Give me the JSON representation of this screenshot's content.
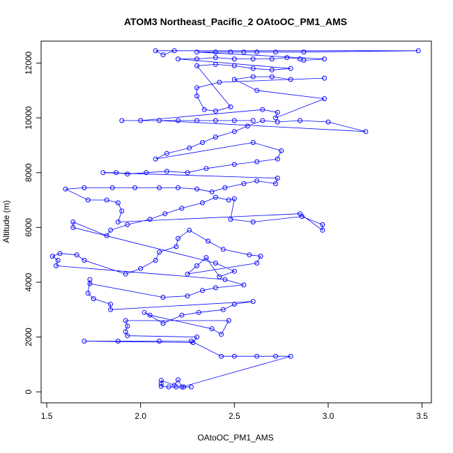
{
  "chart_data": {
    "type": "scatter",
    "title": "ATOM3 Northeast_Pacific_2 OAtoOC_PM1_AMS",
    "xlabel": "OAtoOC_PM1_AMS",
    "ylabel": "Altitude (m)",
    "xlim": [
      1.47,
      3.55
    ],
    "ylim": [
      -400,
      12800
    ],
    "x_ticks": [
      1.5,
      2.0,
      2.5,
      3.0,
      3.5
    ],
    "x_tick_labels": [
      "1.5",
      "2.0",
      "2.5",
      "3.0",
      "3.5"
    ],
    "y_ticks": [
      0,
      2000,
      4000,
      6000,
      8000,
      10000,
      12000
    ],
    "y_tick_labels": [
      "0",
      "2000",
      "4000",
      "6000",
      "8000",
      "10000",
      "12000"
    ],
    "marker": "open-circle",
    "connected_by_line": true,
    "grid": false,
    "series": [
      {
        "color": "#0000ff",
        "points": [
          [
            2.27,
            180
          ],
          [
            2.23,
            180
          ],
          [
            2.19,
            180
          ],
          [
            2.15,
            180
          ],
          [
            2.11,
            200
          ],
          [
            2.11,
            300
          ],
          [
            2.11,
            420
          ],
          [
            2.18,
            240
          ],
          [
            2.2,
            440
          ],
          [
            2.22,
            180
          ],
          [
            2.8,
            1300
          ],
          [
            2.72,
            1300
          ],
          [
            2.62,
            1300
          ],
          [
            2.5,
            1300
          ],
          [
            2.43,
            1300
          ],
          [
            2.27,
            1850
          ],
          [
            2.1,
            1850
          ],
          [
            1.88,
            1850
          ],
          [
            1.7,
            1850
          ],
          [
            2.28,
            1800
          ],
          [
            2.3,
            2000
          ],
          [
            1.93,
            2050
          ],
          [
            1.92,
            2200
          ],
          [
            1.93,
            2400
          ],
          [
            1.92,
            2600
          ],
          [
            2.47,
            2600
          ],
          [
            2.43,
            2100
          ],
          [
            2.38,
            2300
          ],
          [
            2.05,
            2800
          ],
          [
            2.02,
            2900
          ],
          [
            2.12,
            2500
          ],
          [
            2.22,
            2800
          ],
          [
            2.31,
            2900
          ],
          [
            2.44,
            3000
          ],
          [
            2.5,
            3200
          ],
          [
            2.6,
            3300
          ],
          [
            1.84,
            3000
          ],
          [
            1.84,
            3200
          ],
          [
            1.75,
            3400
          ],
          [
            1.72,
            3600
          ],
          [
            1.73,
            4100
          ],
          [
            1.73,
            3950
          ],
          [
            2.12,
            3450
          ],
          [
            2.25,
            3500
          ],
          [
            2.33,
            3700
          ],
          [
            2.4,
            3800
          ],
          [
            2.55,
            3900
          ],
          [
            2.45,
            4100
          ],
          [
            1.55,
            4600
          ],
          [
            1.56,
            4800
          ],
          [
            1.53,
            4950
          ],
          [
            1.57,
            5050
          ],
          [
            1.66,
            5000
          ],
          [
            1.7,
            4800
          ],
          [
            1.92,
            4300
          ],
          [
            2.0,
            4500
          ],
          [
            2.08,
            4800
          ],
          [
            2.1,
            5100
          ],
          [
            2.19,
            5300
          ],
          [
            2.2,
            5600
          ],
          [
            2.26,
            5900
          ],
          [
            2.36,
            5500
          ],
          [
            2.44,
            5200
          ],
          [
            2.58,
            5000
          ],
          [
            2.64,
            4950
          ],
          [
            2.62,
            4700
          ],
          [
            2.25,
            4300
          ],
          [
            2.3,
            4600
          ],
          [
            2.35,
            4900
          ],
          [
            2.42,
            4200
          ],
          [
            2.5,
            4400
          ],
          [
            2.4,
            4700
          ],
          [
            1.64,
            6000
          ],
          [
            1.64,
            6200
          ],
          [
            1.82,
            5700
          ],
          [
            1.84,
            5900
          ],
          [
            1.93,
            6100
          ],
          [
            2.05,
            6300
          ],
          [
            2.13,
            6500
          ],
          [
            2.22,
            6700
          ],
          [
            2.33,
            6900
          ],
          [
            2.4,
            7100
          ],
          [
            2.47,
            7000
          ],
          [
            2.5,
            7050
          ],
          [
            2.48,
            6300
          ],
          [
            2.6,
            6200
          ],
          [
            2.86,
            6400
          ],
          [
            2.97,
            6100
          ],
          [
            2.97,
            5900
          ],
          [
            2.85,
            6500
          ],
          [
            1.88,
            6200
          ],
          [
            1.9,
            6600
          ],
          [
            1.88,
            6900
          ],
          [
            1.82,
            7000
          ],
          [
            1.72,
            7000
          ],
          [
            1.6,
            7400
          ],
          [
            1.7,
            7450
          ],
          [
            1.85,
            7450
          ],
          [
            1.97,
            7450
          ],
          [
            2.1,
            7450
          ],
          [
            2.2,
            7450
          ],
          [
            2.3,
            7400
          ],
          [
            2.38,
            7300
          ],
          [
            2.45,
            7450
          ],
          [
            2.55,
            7600
          ],
          [
            2.62,
            7700
          ],
          [
            2.72,
            7600
          ],
          [
            2.73,
            7800
          ],
          [
            1.8,
            8000
          ],
          [
            1.87,
            8000
          ],
          [
            1.93,
            7950
          ],
          [
            2.03,
            8000
          ],
          [
            2.14,
            8050
          ],
          [
            2.25,
            8000
          ],
          [
            2.35,
            8150
          ],
          [
            2.5,
            8300
          ],
          [
            2.62,
            8400
          ],
          [
            2.73,
            8500
          ],
          [
            2.75,
            8800
          ],
          [
            2.6,
            9100
          ],
          [
            2.08,
            8500
          ],
          [
            2.14,
            8700
          ],
          [
            2.26,
            8900
          ],
          [
            2.33,
            9100
          ],
          [
            2.4,
            9300
          ],
          [
            2.5,
            9500
          ],
          [
            2.57,
            9700
          ],
          [
            2.65,
            9900
          ],
          [
            2.73,
            9850
          ],
          [
            2.85,
            9900
          ],
          [
            3.0,
            9850
          ],
          [
            3.2,
            9500
          ],
          [
            2.1,
            9900
          ],
          [
            2.2,
            9900
          ],
          [
            2.3,
            9900
          ],
          [
            2.4,
            9900
          ],
          [
            2.5,
            9900
          ],
          [
            2.6,
            9900
          ],
          [
            1.9,
            9900
          ],
          [
            2.0,
            9900
          ],
          [
            2.65,
            10300
          ],
          [
            2.73,
            10200
          ],
          [
            2.72,
            10000
          ],
          [
            2.98,
            10700
          ],
          [
            2.62,
            11000
          ],
          [
            2.5,
            11400
          ],
          [
            2.6,
            11500
          ],
          [
            2.7,
            11500
          ],
          [
            2.8,
            11400
          ],
          [
            2.98,
            11450
          ],
          [
            2.42,
            11300
          ],
          [
            2.3,
            11100
          ],
          [
            2.3,
            10800
          ],
          [
            2.34,
            10300
          ],
          [
            2.4,
            10250
          ],
          [
            2.48,
            10400
          ],
          [
            2.3,
            11900
          ],
          [
            2.4,
            11950
          ],
          [
            2.5,
            11900
          ],
          [
            2.6,
            11800
          ],
          [
            2.7,
            11750
          ],
          [
            2.8,
            11800
          ],
          [
            2.2,
            12150
          ],
          [
            2.3,
            12150
          ],
          [
            2.4,
            12200
          ],
          [
            2.5,
            12150
          ],
          [
            2.6,
            12150
          ],
          [
            2.7,
            12150
          ],
          [
            2.78,
            12200
          ],
          [
            2.85,
            12150
          ],
          [
            2.87,
            12100
          ],
          [
            2.98,
            12150
          ],
          [
            2.3,
            12400
          ],
          [
            2.4,
            12400
          ],
          [
            2.48,
            12400
          ],
          [
            2.55,
            12400
          ],
          [
            2.62,
            12400
          ],
          [
            2.72,
            12400
          ],
          [
            2.87,
            12400
          ],
          [
            3.48,
            12450
          ],
          [
            2.08,
            12450
          ],
          [
            2.12,
            12300
          ],
          [
            2.18,
            12450
          ]
        ]
      }
    ]
  }
}
